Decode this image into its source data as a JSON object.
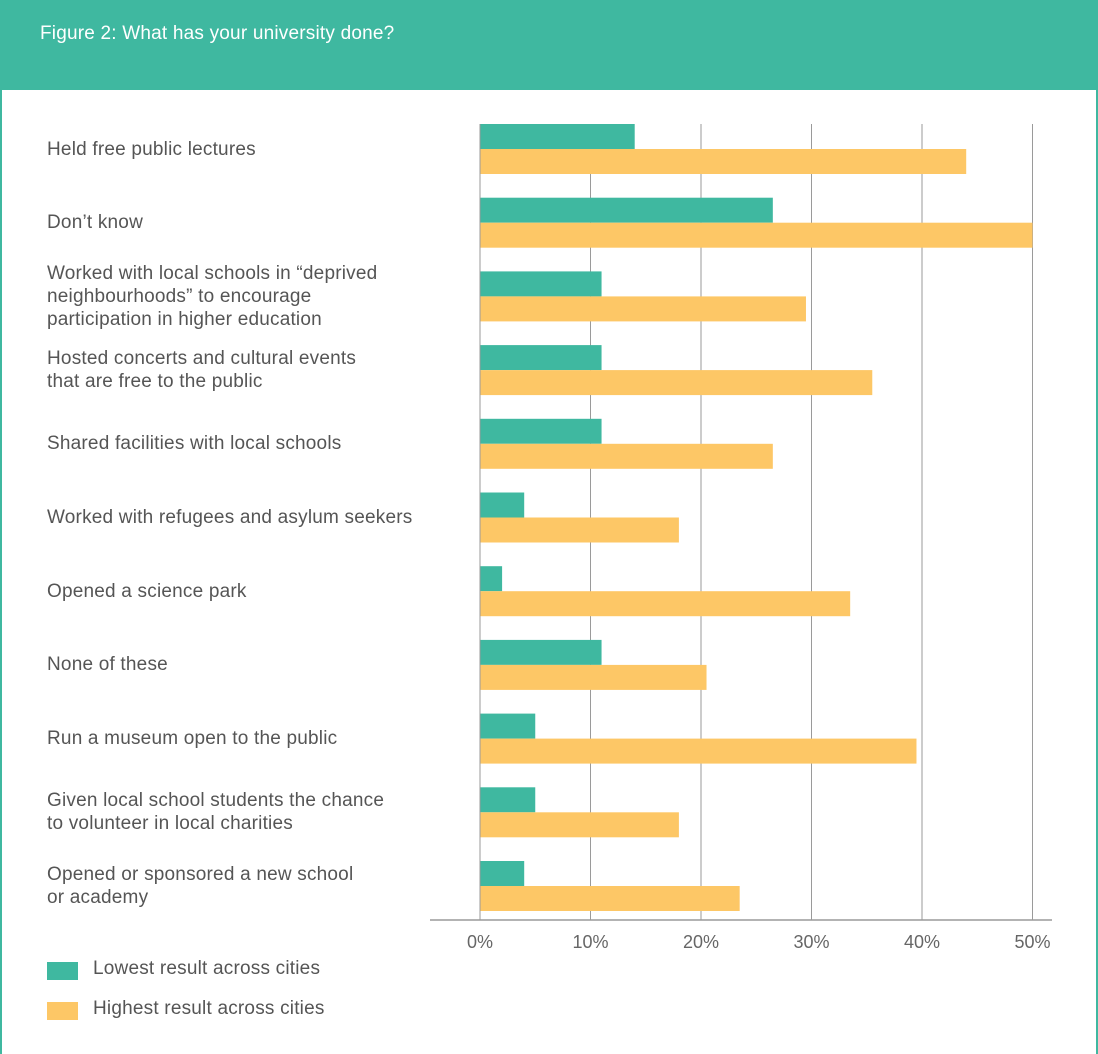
{
  "header": {
    "title": "Figure 2: What has your university done?"
  },
  "colors": {
    "lowest": "#3fb8a0",
    "highest": "#fdc766",
    "header": "#3fb8a0",
    "grid": "#9a9a9a"
  },
  "chart_data": {
    "type": "bar",
    "orientation": "horizontal",
    "title": "Figure 2: What has your university done?",
    "categories": [
      "Held free public lectures",
      "Don’t know",
      "Worked with local schools in “deprived neighbourhoods” to encourage participation in higher education",
      "Hosted concerts and cultural events that are free to the public",
      "Shared facilities with local schools",
      "Worked with refugees and asylum seekers",
      "Opened a science park",
      "None of these",
      "Run a museum open to the public",
      "Given local school students the chance to volunteer in local charities",
      "Opened or sponsored a new school or academy"
    ],
    "series": [
      {
        "name": "Lowest result across cities",
        "values": [
          14,
          26.5,
          11,
          11,
          11,
          4,
          2,
          11,
          5,
          5,
          4
        ]
      },
      {
        "name": "Highest result across cities",
        "values": [
          44,
          50,
          29.5,
          35.5,
          26.5,
          18,
          33.5,
          20.5,
          39.5,
          18,
          23.5
        ]
      }
    ],
    "xlim": [
      0,
      50
    ],
    "xticks": [
      "0%",
      "10%",
      "20%",
      "30%",
      "40%",
      "50%"
    ],
    "grid": true,
    "legend": "bottom-left"
  }
}
